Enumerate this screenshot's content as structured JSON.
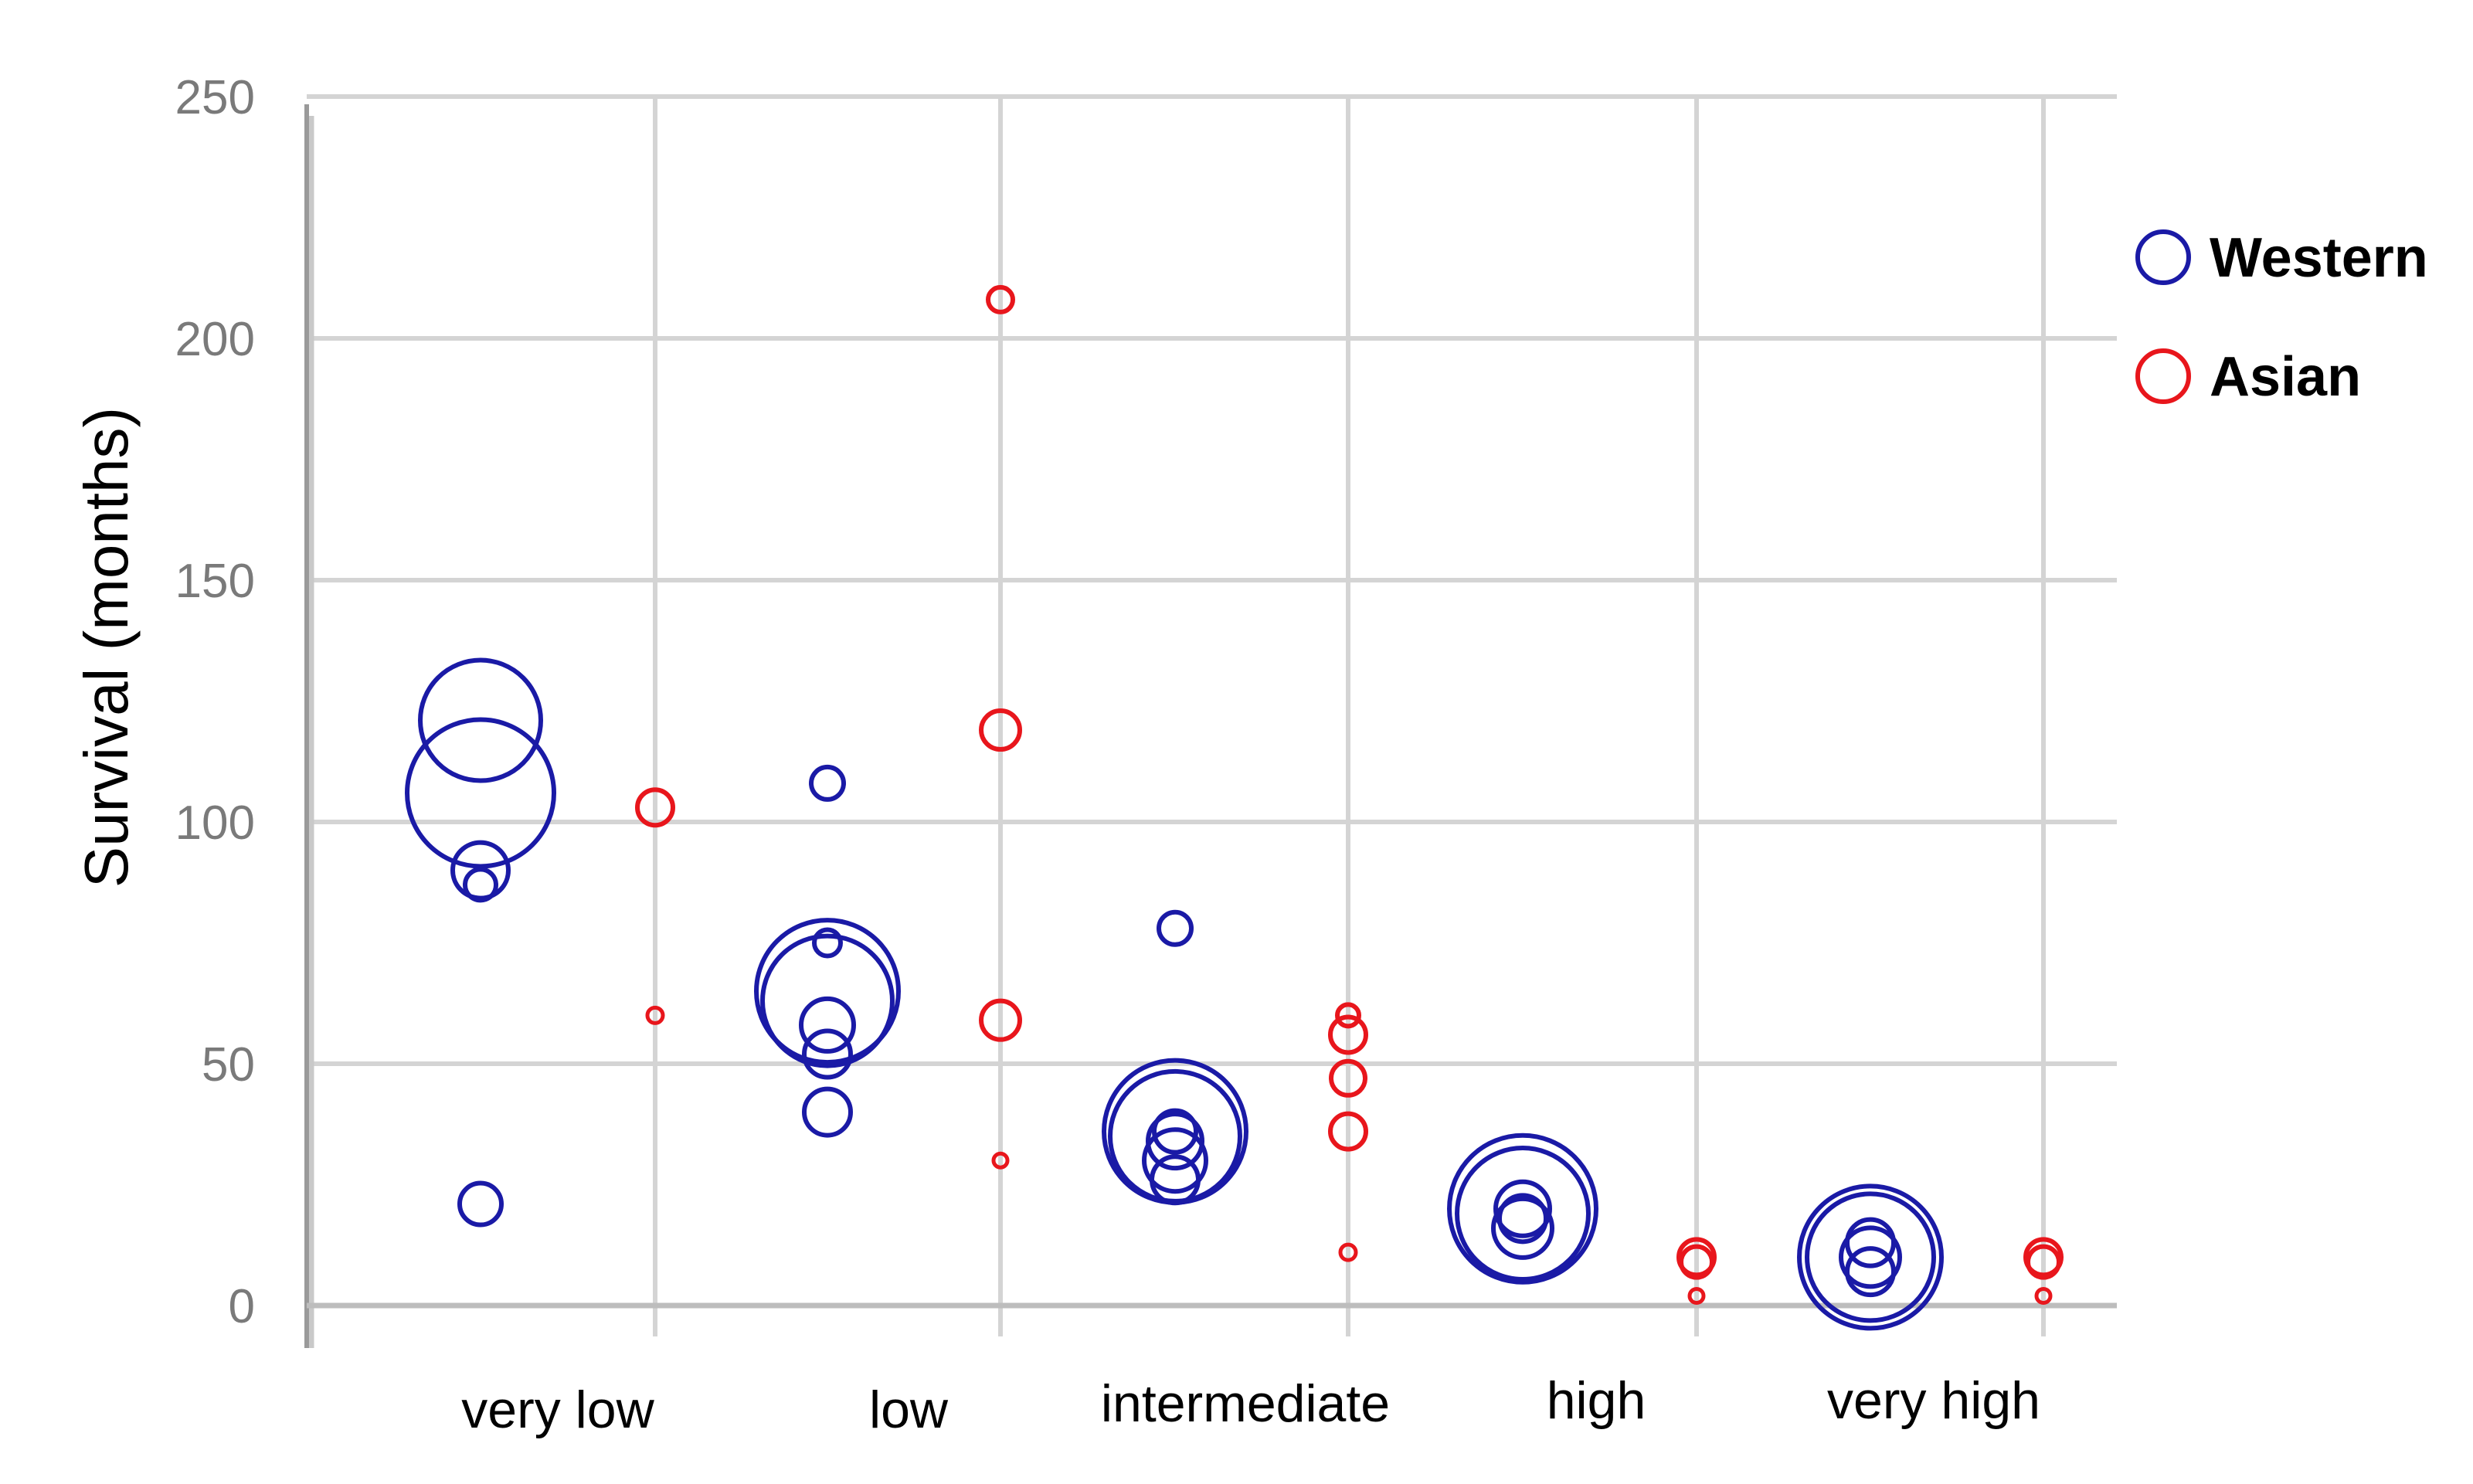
{
  "chart_data": {
    "type": "scatter",
    "subtype": "bubble",
    "title": "",
    "xlabel": "",
    "ylabel": "Survival (months)",
    "ylim": [
      0,
      250
    ],
    "yticks": [
      0,
      50,
      100,
      150,
      200,
      250
    ],
    "categories": [
      "very low",
      "low",
      "intermediate",
      "high",
      "very high"
    ],
    "grid": true,
    "legend_position": "right",
    "series": [
      {
        "name": "Western",
        "color": "#1a1aa6",
        "points": [
          {
            "category": "very low",
            "y": 121,
            "size": 78
          },
          {
            "category": "very low",
            "y": 106,
            "size": 95
          },
          {
            "category": "very low",
            "y": 90,
            "size": 36
          },
          {
            "category": "very low",
            "y": 87,
            "size": 20
          },
          {
            "category": "very low",
            "y": 21,
            "size": 27
          },
          {
            "category": "low",
            "y": 108,
            "size": 21
          },
          {
            "category": "low",
            "y": 75,
            "size": 17
          },
          {
            "category": "low",
            "y": 65,
            "size": 92
          },
          {
            "category": "low",
            "y": 63,
            "size": 84
          },
          {
            "category": "low",
            "y": 58,
            "size": 34
          },
          {
            "category": "low",
            "y": 52,
            "size": 30
          },
          {
            "category": "low",
            "y": 40,
            "size": 30
          },
          {
            "category": "intermediate",
            "y": 78,
            "size": 21
          },
          {
            "category": "intermediate",
            "y": 36,
            "size": 92
          },
          {
            "category": "intermediate",
            "y": 35,
            "size": 84
          },
          {
            "category": "intermediate",
            "y": 36,
            "size": 27
          },
          {
            "category": "intermediate",
            "y": 34,
            "size": 35
          },
          {
            "category": "intermediate",
            "y": 30,
            "size": 40
          },
          {
            "category": "intermediate",
            "y": 26,
            "size": 30
          },
          {
            "category": "high",
            "y": 20,
            "size": 95
          },
          {
            "category": "high",
            "y": 19,
            "size": 85
          },
          {
            "category": "high",
            "y": 20,
            "size": 35
          },
          {
            "category": "high",
            "y": 18,
            "size": 30
          },
          {
            "category": "high",
            "y": 16,
            "size": 38
          },
          {
            "category": "very high",
            "y": 10,
            "size": 92
          },
          {
            "category": "very high",
            "y": 10,
            "size": 82
          },
          {
            "category": "very high",
            "y": 13,
            "size": 30
          },
          {
            "category": "very high",
            "y": 10,
            "size": 38
          },
          {
            "category": "very high",
            "y": 7,
            "size": 30
          }
        ]
      },
      {
        "name": "Asian",
        "color": "#e8161c",
        "points": [
          {
            "category": "very low",
            "y": 103,
            "size": 23
          },
          {
            "category": "very low",
            "y": 60,
            "size": 10
          },
          {
            "category": "low",
            "y": 208,
            "size": 16
          },
          {
            "category": "low",
            "y": 119,
            "size": 25
          },
          {
            "category": "low",
            "y": 59,
            "size": 25
          },
          {
            "category": "low",
            "y": 30,
            "size": 9
          },
          {
            "category": "intermediate",
            "y": 60,
            "size": 14
          },
          {
            "category": "intermediate",
            "y": 56,
            "size": 23
          },
          {
            "category": "intermediate",
            "y": 47,
            "size": 22
          },
          {
            "category": "intermediate",
            "y": 36,
            "size": 23
          },
          {
            "category": "intermediate",
            "y": 11,
            "size": 10
          },
          {
            "category": "high",
            "y": 10,
            "size": 23
          },
          {
            "category": "high",
            "y": 9,
            "size": 20
          },
          {
            "category": "high",
            "y": 2,
            "size": 9
          },
          {
            "category": "very high",
            "y": 10,
            "size": 23
          },
          {
            "category": "very high",
            "y": 9,
            "size": 20
          },
          {
            "category": "very high",
            "y": 2,
            "size": 9
          }
        ]
      }
    ]
  }
}
